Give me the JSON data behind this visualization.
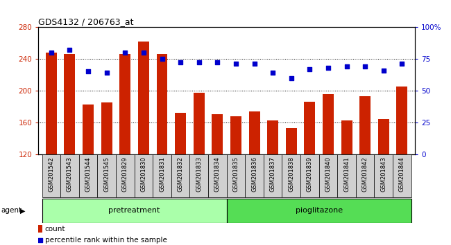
{
  "title": "GDS4132 / 206763_at",
  "samples": [
    "GSM201542",
    "GSM201543",
    "GSM201544",
    "GSM201545",
    "GSM201829",
    "GSM201830",
    "GSM201831",
    "GSM201832",
    "GSM201833",
    "GSM201834",
    "GSM201835",
    "GSM201836",
    "GSM201837",
    "GSM201838",
    "GSM201839",
    "GSM201840",
    "GSM201841",
    "GSM201842",
    "GSM201843",
    "GSM201844"
  ],
  "counts": [
    248,
    246,
    183,
    185,
    246,
    262,
    246,
    172,
    197,
    170,
    168,
    174,
    163,
    153,
    186,
    196,
    163,
    193,
    164,
    205
  ],
  "percentiles": [
    80,
    82,
    65,
    64,
    80,
    80,
    75,
    72,
    72,
    72,
    71,
    71,
    64,
    60,
    67,
    68,
    69,
    69,
    66,
    71
  ],
  "ylim_left": [
    120,
    280
  ],
  "ylim_right": [
    0,
    100
  ],
  "yticks_left": [
    120,
    160,
    200,
    240,
    280
  ],
  "yticks_right": [
    0,
    25,
    50,
    75,
    100
  ],
  "bar_color": "#cc2200",
  "dot_color": "#0000cc",
  "pretreatment_label": "pretreatment",
  "pioglitazone_label": "pioglitazone",
  "pretreatment_count": 10,
  "pioglitazone_count": 10,
  "agent_label": "agent",
  "legend_count_label": "count",
  "legend_percentile_label": "percentile rank within the sample",
  "pretreatment_color": "#aaffaa",
  "pioglitazone_color": "#55dd55",
  "label_bg_color": "#d0d0d0"
}
